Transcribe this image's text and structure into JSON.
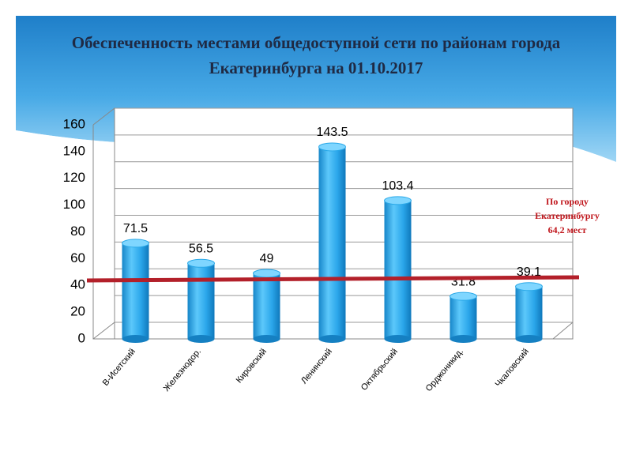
{
  "chart_data": {
    "type": "bar",
    "title": "Обеспеченность местами общедоступной сети  по районам города Екатеринбурга на 01.10.2017",
    "categories": [
      "В-Исетский",
      "Железнодор.",
      "Кировский",
      "Ленинский",
      "Октябрьский",
      "Орджоникид.",
      "Чкаловский"
    ],
    "values": [
      71.5,
      56.5,
      49,
      143.5,
      103.4,
      31.8,
      39.1
    ],
    "color": "#29a8e8",
    "ylim": [
      0,
      160
    ],
    "yticks": [
      0,
      20,
      40,
      60,
      80,
      100,
      120,
      140,
      160
    ],
    "grid": true,
    "annotation": [
      "По городу",
      "Екатеринбургу",
      "64,2 мест"
    ]
  }
}
